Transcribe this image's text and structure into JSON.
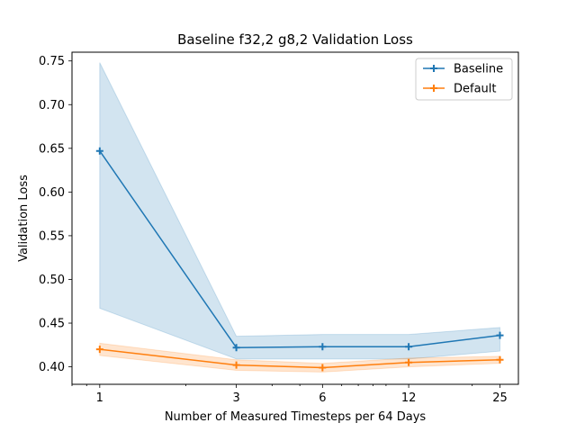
{
  "chart_data": {
    "type": "line",
    "title": "Baseline f32,2 g8,2 Validation Loss",
    "xlabel": "Number of Measured Timesteps per 64 Days",
    "ylabel": "Validation Loss",
    "x_scale": "log",
    "x": [
      1,
      3,
      6,
      12,
      25
    ],
    "x_tick_labels": [
      "1",
      "3",
      "6",
      "12",
      "25"
    ],
    "xlim": [
      0.8,
      29
    ],
    "ylim": [
      0.38,
      0.76
    ],
    "y_ticks": [
      0.4,
      0.45,
      0.5,
      0.55,
      0.6,
      0.65,
      0.7,
      0.75
    ],
    "y_tick_labels": [
      "0.40",
      "0.45",
      "0.50",
      "0.55",
      "0.60",
      "0.65",
      "0.70",
      "0.75"
    ],
    "grid": false,
    "legend": {
      "placement": "top-right"
    },
    "series": [
      {
        "name": "Baseline",
        "color": "#1f77b4",
        "marker": "plus",
        "values": [
          0.647,
          0.422,
          0.423,
          0.423,
          0.436
        ],
        "band_upper": [
          0.748,
          0.435,
          0.437,
          0.437,
          0.445
        ],
        "band_lower": [
          0.467,
          0.409,
          0.409,
          0.409,
          0.418
        ]
      },
      {
        "name": "Default",
        "color": "#ff7f0e",
        "marker": "plus",
        "values": [
          0.42,
          0.402,
          0.399,
          0.405,
          0.408
        ],
        "band_upper": [
          0.427,
          0.408,
          0.404,
          0.41,
          0.412
        ],
        "band_lower": [
          0.413,
          0.396,
          0.394,
          0.4,
          0.404
        ]
      }
    ]
  }
}
